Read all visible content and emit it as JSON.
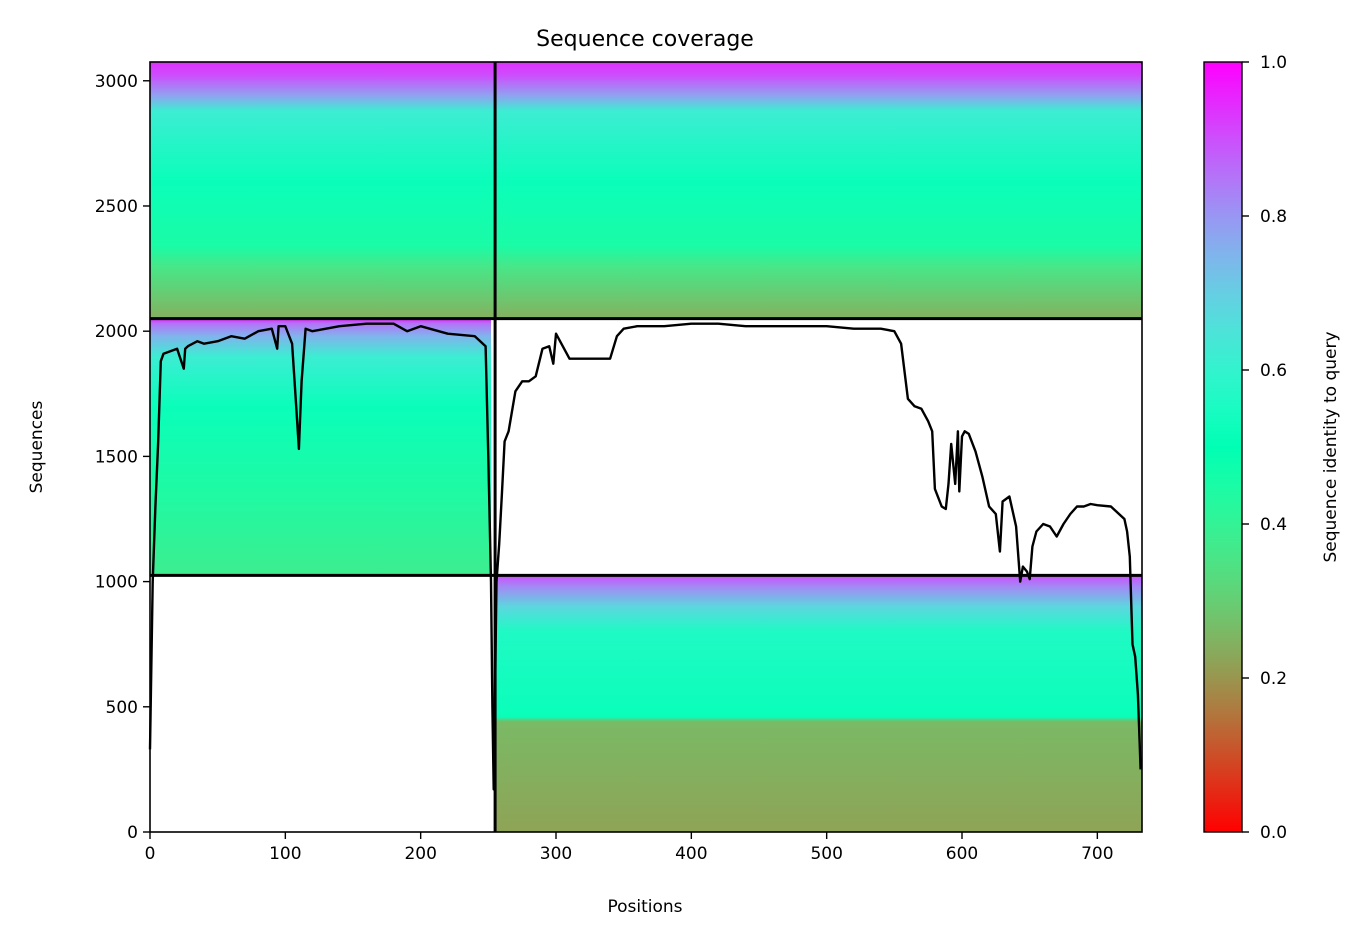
{
  "chart_data": {
    "type": "heatmap",
    "title": "Sequence coverage",
    "xlabel": "Positions",
    "ylabel": "Sequences",
    "colorbar_label": "Sequence identity to query",
    "colormap": "rainbow_r",
    "xlim": [
      0,
      733
    ],
    "ylim": [
      0,
      3075
    ],
    "clim": [
      0,
      1
    ],
    "x_ticks": [
      0,
      100,
      200,
      300,
      400,
      500,
      600,
      700
    ],
    "y_ticks": [
      0,
      500,
      1000,
      1500,
      2000,
      2500,
      3000
    ],
    "colorbar_ticks": [
      "0.0",
      "0.2",
      "0.4",
      "0.6",
      "0.8",
      "1.0"
    ],
    "chain_boundaries": {
      "positions": [
        255
      ],
      "sequences": [
        1025,
        2050
      ]
    },
    "blocks": [
      {
        "name": "A",
        "x_range": [
          0,
          255
        ],
        "y_range": [
          2050,
          3075
        ],
        "coverage_end": 255,
        "identity_stops": [
          [
            2050,
            0.24
          ],
          [
            2120,
            0.28
          ],
          [
            2260,
            0.36
          ],
          [
            2340,
            0.45
          ],
          [
            2600,
            0.52
          ],
          [
            2880,
            0.62
          ],
          [
            2940,
            0.78
          ],
          [
            3020,
            0.9
          ],
          [
            3075,
            0.94
          ]
        ]
      },
      {
        "name": "B",
        "x_range": [
          255,
          733
        ],
        "y_range": [
          2050,
          3075
        ],
        "coverage_end": 733,
        "identity_stops": [
          [
            2050,
            0.24
          ],
          [
            2120,
            0.28
          ],
          [
            2260,
            0.36
          ],
          [
            2340,
            0.45
          ],
          [
            2600,
            0.52
          ],
          [
            2880,
            0.62
          ],
          [
            2940,
            0.78
          ],
          [
            3020,
            0.9
          ],
          [
            3075,
            0.94
          ]
        ]
      },
      {
        "name": "C",
        "x_range": [
          0,
          255
        ],
        "y_range": [
          1025,
          2050
        ],
        "coverage_end": 252,
        "identity_stops": [
          [
            1025,
            0.38
          ],
          [
            1350,
            0.44
          ],
          [
            1700,
            0.52
          ],
          [
            1900,
            0.62
          ],
          [
            1980,
            0.75
          ],
          [
            2030,
            0.85
          ],
          [
            2050,
            0.95
          ]
        ]
      },
      {
        "name": "D",
        "x_range": [
          255,
          733
        ],
        "y_range": [
          0,
          1025
        ],
        "coverage_end": 733,
        "identity_stops": [
          [
            0,
            0.22
          ],
          [
            440,
            0.26
          ],
          [
            460,
            0.52
          ],
          [
            800,
            0.56
          ],
          [
            900,
            0.68
          ],
          [
            980,
            0.82
          ],
          [
            1025,
            0.9
          ]
        ]
      }
    ],
    "coverage_line": {
      "name": "coverage",
      "x": [
        0,
        2,
        4,
        6,
        8,
        10,
        15,
        20,
        25,
        26,
        28,
        35,
        40,
        50,
        60,
        70,
        80,
        90,
        94,
        95,
        100,
        105,
        108,
        110,
        112,
        115,
        120,
        140,
        160,
        180,
        190,
        200,
        220,
        240,
        248,
        250,
        252,
        253,
        254,
        256,
        258,
        260,
        262,
        265,
        270,
        275,
        280,
        285,
        290,
        295,
        298,
        300,
        310,
        320,
        340,
        345,
        350,
        360,
        380,
        400,
        420,
        440,
        460,
        480,
        500,
        520,
        540,
        550,
        555,
        560,
        565,
        570,
        575,
        578,
        580,
        585,
        588,
        590,
        592,
        595,
        597,
        598,
        600,
        602,
        605,
        610,
        615,
        620,
        625,
        628,
        630,
        635,
        640,
        643,
        645,
        648,
        650,
        652,
        655,
        660,
        665,
        670,
        675,
        680,
        685,
        690,
        695,
        700,
        710,
        720,
        722,
        724,
        726,
        728,
        730,
        732
      ],
      "y": [
        330,
        1000,
        1300,
        1550,
        1880,
        1910,
        1920,
        1930,
        1850,
        1930,
        1940,
        1960,
        1950,
        1960,
        1980,
        1970,
        2000,
        2010,
        1930,
        2020,
        2020,
        1950,
        1700,
        1530,
        1800,
        2010,
        2000,
        2020,
        2030,
        2030,
        2000,
        2020,
        1990,
        1980,
        1940,
        1500,
        1000,
        500,
        170,
        1000,
        1150,
        1350,
        1560,
        1600,
        1760,
        1800,
        1800,
        1820,
        1930,
        1940,
        1870,
        1990,
        1890,
        1890,
        1890,
        1980,
        2010,
        2020,
        2020,
        2030,
        2030,
        2020,
        2020,
        2020,
        2020,
        2010,
        2010,
        2000,
        1950,
        1730,
        1700,
        1690,
        1640,
        1600,
        1370,
        1300,
        1290,
        1390,
        1550,
        1390,
        1600,
        1360,
        1580,
        1600,
        1590,
        1520,
        1420,
        1300,
        1270,
        1120,
        1320,
        1340,
        1220,
        1000,
        1060,
        1040,
        1010,
        1140,
        1200,
        1230,
        1220,
        1180,
        1230,
        1270,
        1300,
        1300,
        1310,
        1305,
        1300,
        1250,
        1200,
        1100,
        750,
        700,
        550,
        250
      ]
    }
  }
}
